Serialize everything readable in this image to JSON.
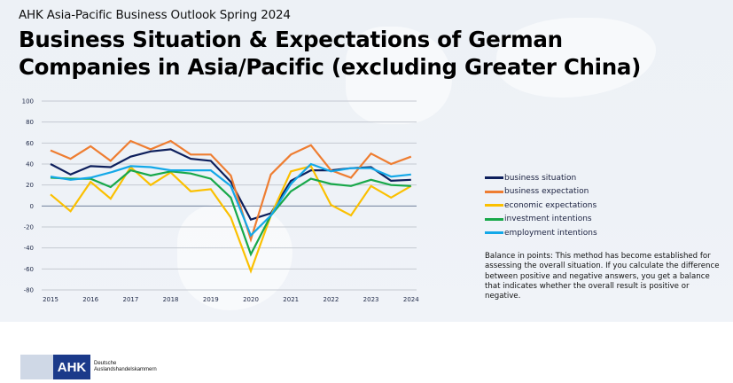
{
  "header": {
    "suptitle": "AHK Asia-Pacific Business Outlook Spring 2024",
    "title": "Business Situation & Expectations of German Companies in Asia/Pacific (excluding Greater China)"
  },
  "colors": {
    "business_situation": "#0d1f5c",
    "business_expectation": "#ee7d31",
    "economic_expectations": "#fbc000",
    "investment_intentions": "#18a84a",
    "employment_intentions": "#13a8e8",
    "grid": "#c4c9d1",
    "zero_line": "#6f7f9b"
  },
  "chart_data": {
    "type": "line",
    "title": "Business Situation & Expectations of German Companies in Asia/Pacific (excluding Greater China)",
    "xlabel": "",
    "ylabel": "",
    "ylim": [
      -80,
      100
    ],
    "yticks": [
      100,
      80,
      60,
      40,
      20,
      0,
      -20,
      -40,
      -60,
      -80
    ],
    "ytick_labels": [
      "100",
      "80",
      "60",
      "40",
      "20",
      "0",
      "-20",
      "-40",
      "-60",
      "-80"
    ],
    "xtick_labels": [
      "2015",
      "2016",
      "2017",
      "2018",
      "2019",
      "2020",
      "2021",
      "2022",
      "2023",
      "2024"
    ],
    "x": [
      "2015 H1",
      "2015 H2",
      "2016 H1",
      "2016 H2",
      "2017 H1",
      "2017 H2",
      "2018 H1",
      "2018 H2",
      "2019 H1",
      "2019 H2",
      "2020 H1",
      "2020 H2",
      "2021 H1",
      "2021 H2",
      "2022 H1",
      "2022 H2",
      "2023 H1",
      "2023 H2",
      "2024 H1"
    ],
    "grid": true,
    "legend_position": "right",
    "series": [
      {
        "name": "business situation",
        "color_key": "business_situation",
        "values": [
          40,
          30,
          38,
          37,
          47,
          52,
          54,
          45,
          43,
          23,
          -13,
          -7,
          24,
          34,
          34,
          36,
          37,
          24,
          25
        ]
      },
      {
        "name": "business expectation",
        "color_key": "business_expectation",
        "values": [
          53,
          45,
          57,
          43,
          62,
          54,
          62,
          49,
          49,
          29,
          -32,
          30,
          49,
          58,
          34,
          27,
          50,
          40,
          47
        ]
      },
      {
        "name": "economic expectations",
        "color_key": "economic_expectations",
        "values": [
          11,
          -5,
          23,
          7,
          37,
          20,
          32,
          14,
          16,
          -11,
          -62,
          -9,
          33,
          38,
          1,
          -9,
          19,
          8,
          19
        ]
      },
      {
        "name": "investment intentions",
        "color_key": "investment_intentions",
        "values": [
          27,
          26,
          26,
          18,
          34,
          29,
          33,
          31,
          26,
          8,
          -46,
          -9,
          14,
          26,
          21,
          19,
          25,
          20,
          19
        ]
      },
      {
        "name": "employment intentions",
        "color_key": "employment_intentions",
        "values": [
          28,
          25,
          27,
          32,
          38,
          37,
          34,
          34,
          34,
          19,
          -28,
          -9,
          21,
          40,
          33,
          36,
          36,
          28,
          30
        ]
      }
    ]
  },
  "legend": [
    {
      "label": "business situation",
      "color_key": "business_situation"
    },
    {
      "label": "business expectation",
      "color_key": "business_expectation"
    },
    {
      "label": "economic expectations",
      "color_key": "economic_expectations"
    },
    {
      "label": "investment intentions",
      "color_key": "investment_intentions"
    },
    {
      "label": "employment intentions",
      "color_key": "employment_intentions"
    }
  ],
  "note": "Balance in points: This method has become established for assessing the overall situation. If you calculate the difference between positive and negative answers, you get a balance that indicates whether the overall result is positive or negative.",
  "logo": {
    "mark": "AHK",
    "line1": "Deutsche",
    "line2": "Auslandshandelskammern"
  }
}
